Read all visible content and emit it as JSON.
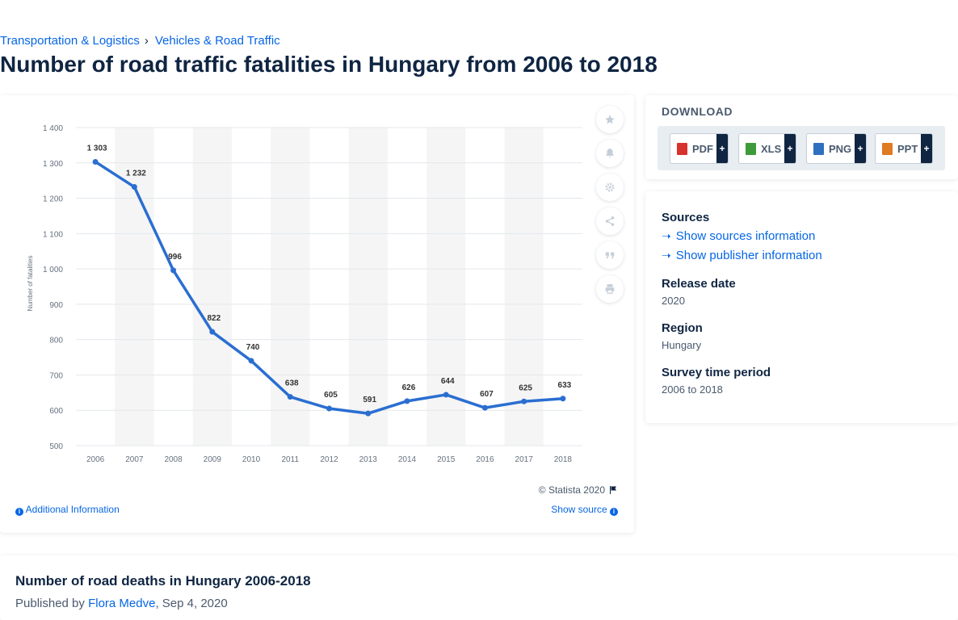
{
  "breadcrumb": {
    "items": [
      "Transportation & Logistics",
      "Vehicles & Road Traffic"
    ],
    "separator": "›"
  },
  "page": {
    "title": "Number of road traffic fatalities in Hungary from 2006 to 2018"
  },
  "chart_footer": {
    "copyright": "© Statista 2020",
    "additional_info": "Additional Information",
    "show_source": "Show source"
  },
  "chart_tools": [
    "star-icon",
    "bell-icon",
    "gear-icon",
    "share-icon",
    "quote-icon",
    "print-icon"
  ],
  "download": {
    "title": "DOWNLOAD",
    "buttons": [
      {
        "label": "PDF",
        "color": "#d8322e"
      },
      {
        "label": "XLS",
        "color": "#3f9a3b"
      },
      {
        "label": "PNG",
        "color": "#2f6fbf"
      },
      {
        "label": "PPT",
        "color": "#e07a23"
      }
    ],
    "plus": "+"
  },
  "meta": {
    "sources_label": "Sources",
    "show_sources": "Show sources information",
    "show_publisher": "Show publisher information",
    "release_label": "Release date",
    "release_value": "2020",
    "region_label": "Region",
    "region_value": "Hungary",
    "survey_label": "Survey time period",
    "survey_value": "2006 to 2018"
  },
  "bottom": {
    "title": "Number of road deaths in Hungary 2006-2018",
    "published_by": "Published by",
    "author": "Flora Medve",
    "date": ", Sep 4, 2020"
  },
  "colors": {
    "accent": "#0666e5",
    "line": "#2a6ed1",
    "title": "#0f2542",
    "band": "#f5f5f5"
  },
  "chart_data": {
    "type": "line",
    "title": "",
    "xlabel": "",
    "ylabel": "Number of fatalities",
    "categories": [
      "2006",
      "2007",
      "2008",
      "2009",
      "2010",
      "2011",
      "2012",
      "2013",
      "2014",
      "2015",
      "2016",
      "2017",
      "2018"
    ],
    "values": [
      1303,
      1232,
      996,
      822,
      740,
      638,
      605,
      591,
      626,
      644,
      607,
      625,
      633
    ],
    "value_labels": [
      "1 303",
      "1 232",
      "996",
      "822",
      "740",
      "638",
      "605",
      "591",
      "626",
      "644",
      "607",
      "625",
      "633"
    ],
    "ylim": [
      500,
      1400
    ],
    "yticks": [
      500,
      600,
      700,
      800,
      900,
      1000,
      1100,
      1200,
      1300,
      1400
    ],
    "ytick_labels": [
      "500",
      "600",
      "700",
      "800",
      "900",
      "1 000",
      "1 100",
      "1 200",
      "1 300",
      "1 400"
    ],
    "grid": true
  }
}
